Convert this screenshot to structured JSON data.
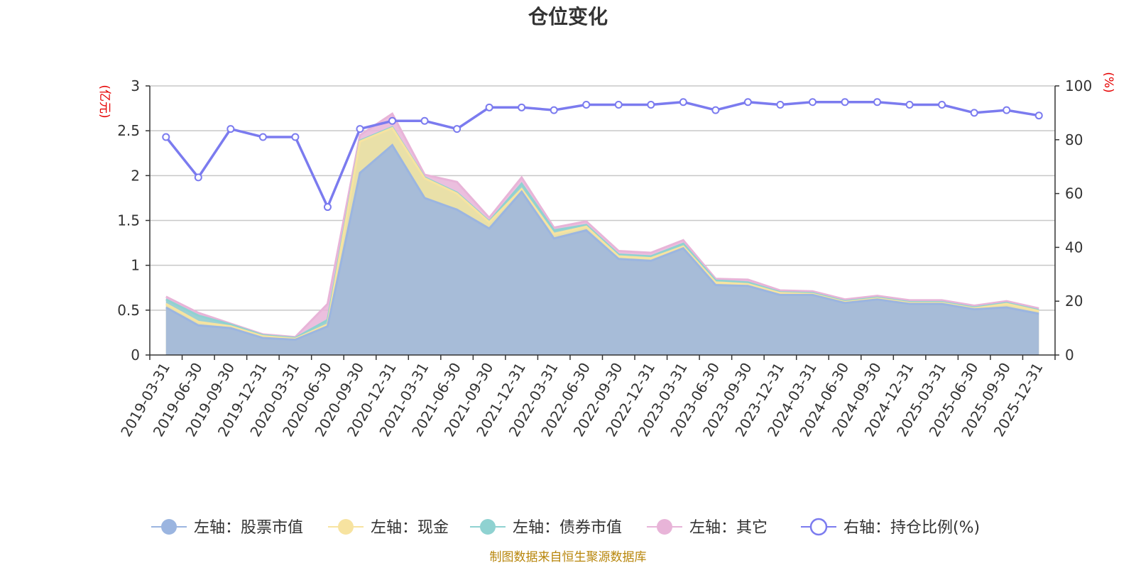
{
  "chart_data": {
    "type": "area",
    "title": "仓位变化",
    "left_axis_unit": "(亿元)",
    "right_axis_unit": "(%)",
    "categories": [
      "2019-03-31",
      "2019-06-30",
      "2019-09-30",
      "2019-12-31",
      "2020-03-31",
      "2020-06-30",
      "2020-09-30",
      "2020-12-31",
      "2021-03-31",
      "2021-06-30",
      "2021-09-30",
      "2021-12-31",
      "2022-03-31",
      "2022-06-30",
      "2022-09-30",
      "2022-12-31",
      "2023-03-31",
      "2023-06-30",
      "2023-09-30",
      "2023-12-31",
      "2024-03-31",
      "2024-06-30",
      "2024-09-30",
      "2024-12-31",
      "2025-03-31",
      "2025-06-30",
      "2025-09-30",
      "2025-12-31"
    ],
    "left_axis": {
      "min": 0,
      "max": 3,
      "ticks": [
        "0",
        "0.5",
        "1",
        "1.5",
        "2",
        "2.5",
        "3"
      ]
    },
    "right_axis": {
      "min": 0,
      "max": 100,
      "ticks": [
        "0",
        "20",
        "40",
        "60",
        "80",
        "100"
      ]
    },
    "series": [
      {
        "name": "左轴：股票市值",
        "axis": "left",
        "color": "#9bb5e0",
        "values": [
          0.53,
          0.33,
          0.3,
          0.19,
          0.17,
          0.32,
          2.03,
          2.34,
          1.75,
          1.62,
          1.41,
          1.82,
          1.3,
          1.39,
          1.07,
          1.05,
          1.19,
          0.78,
          0.77,
          0.67,
          0.67,
          0.58,
          0.62,
          0.57,
          0.57,
          0.51,
          0.53,
          0.46
        ]
      },
      {
        "name": "左轴：现金",
        "axis": "left",
        "color": "#f7e3a0",
        "values": [
          0.04,
          0.04,
          0.02,
          0.02,
          0.01,
          0.02,
          0.35,
          0.19,
          0.22,
          0.18,
          0.07,
          0.03,
          0.05,
          0.04,
          0.03,
          0.03,
          0.02,
          0.03,
          0.02,
          0.02,
          0.01,
          0.01,
          0.01,
          0.01,
          0.01,
          0.01,
          0.04,
          0.03
        ]
      },
      {
        "name": "左轴：债券市值",
        "axis": "left",
        "color": "#8fd2d1",
        "values": [
          0.05,
          0.07,
          0.02,
          0.01,
          0.01,
          0.05,
          0.01,
          0.01,
          0.01,
          0.01,
          0.01,
          0.06,
          0.04,
          0.02,
          0.02,
          0.02,
          0.03,
          0.02,
          0.02,
          0.01,
          0.01,
          0.01,
          0.01,
          0.01,
          0.01,
          0.01,
          0.01,
          0.01
        ]
      },
      {
        "name": "左轴：其它",
        "axis": "left",
        "color": "#e8b4d8",
        "values": [
          0.03,
          0.03,
          0.01,
          0.01,
          0.01,
          0.18,
          0.06,
          0.15,
          0.03,
          0.12,
          0.04,
          0.07,
          0.03,
          0.04,
          0.04,
          0.04,
          0.04,
          0.02,
          0.03,
          0.02,
          0.02,
          0.02,
          0.02,
          0.02,
          0.02,
          0.02,
          0.02,
          0.02
        ]
      },
      {
        "name": "右轴：持仓比例(%)",
        "axis": "right",
        "color": "#7b7bef",
        "values": [
          81,
          66,
          84,
          81,
          81,
          55,
          84,
          87,
          87,
          84,
          92,
          92,
          91,
          93,
          93,
          93,
          94,
          91,
          94,
          93,
          94,
          94,
          94,
          93,
          93,
          90,
          91,
          89
        ]
      }
    ],
    "legend_position": "bottom",
    "grid": true
  },
  "source_note": "制图数据来自恒生聚源数据库"
}
